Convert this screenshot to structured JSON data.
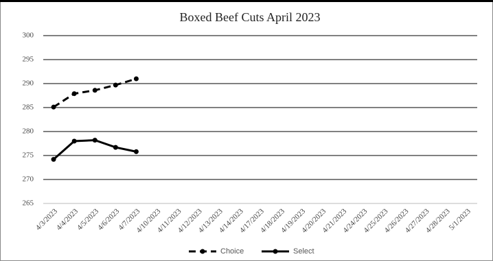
{
  "chart_data": {
    "type": "line",
    "title": "Boxed Beef Cuts April 2023",
    "categories": [
      "4/3/2023",
      "4/4/2023",
      "4/5/2023",
      "4/6/2023",
      "4/7/2023",
      "4/10/2023",
      "4/11/2023",
      "4/12/2023",
      "4/13/2023",
      "4/14/2023",
      "4/17/2023",
      "4/18/2023",
      "4/19/2023",
      "4/20/2023",
      "4/21/2023",
      "4/24/2023",
      "4/25/2023",
      "4/26/2023",
      "4/27/2023",
      "4/28/2023",
      "5/1/2023"
    ],
    "series": [
      {
        "name": "Choice",
        "color": "#000000",
        "dashed": true,
        "values": [
          285.1,
          287.9,
          288.6,
          289.7,
          291.0,
          null,
          null,
          null,
          null,
          null,
          null,
          null,
          null,
          null,
          null,
          null,
          null,
          null,
          null,
          null,
          null
        ]
      },
      {
        "name": "Select",
        "color": "#000000",
        "dashed": false,
        "values": [
          274.2,
          278.0,
          278.2,
          276.7,
          275.8,
          null,
          null,
          null,
          null,
          null,
          null,
          null,
          null,
          null,
          null,
          null,
          null,
          null,
          null,
          null,
          null
        ]
      }
    ],
    "ylim": [
      265,
      300
    ],
    "yticks": [
      265,
      270,
      275,
      280,
      285,
      290,
      295,
      300
    ],
    "grid": true,
    "legend": "bottom"
  }
}
